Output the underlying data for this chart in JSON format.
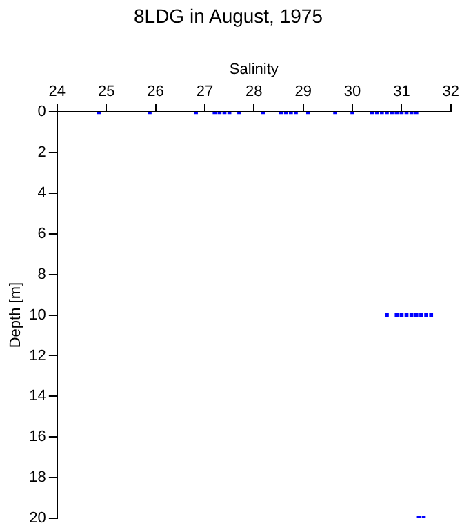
{
  "chart_data": {
    "type": "scatter",
    "title": "8LDG in August, 1975",
    "xlabel": "Salinity",
    "ylabel": "Depth [m]",
    "x": [
      24.85,
      25.88,
      26.82,
      27.2,
      27.3,
      27.4,
      27.5,
      27.7,
      28.18,
      28.55,
      28.65,
      28.75,
      28.85,
      29.1,
      29.65,
      30.0,
      30.4,
      30.5,
      30.6,
      30.7,
      30.8,
      30.9,
      31.0,
      31.1,
      31.2,
      31.3,
      30.7,
      30.9,
      31.0,
      31.1,
      31.2,
      31.3,
      31.4,
      31.5,
      31.6,
      31.35,
      31.45
    ],
    "values": [
      0,
      0,
      0,
      0,
      0,
      0,
      0,
      0,
      0,
      0,
      0,
      0,
      0,
      0,
      0,
      0,
      0,
      0,
      0,
      0,
      0,
      0,
      0,
      0,
      0,
      0,
      10,
      10,
      10,
      10,
      10,
      10,
      10,
      10,
      10,
      20,
      20
    ],
    "color": "#0000ff",
    "marker": "square",
    "grid": false,
    "xlim": [
      24,
      32
    ],
    "xticks": [
      24,
      25,
      26,
      27,
      28,
      29,
      30,
      31,
      32
    ],
    "ylim": [
      20,
      0
    ],
    "yticks": [
      0,
      2,
      4,
      6,
      8,
      10,
      12,
      14,
      16,
      18,
      20
    ]
  }
}
